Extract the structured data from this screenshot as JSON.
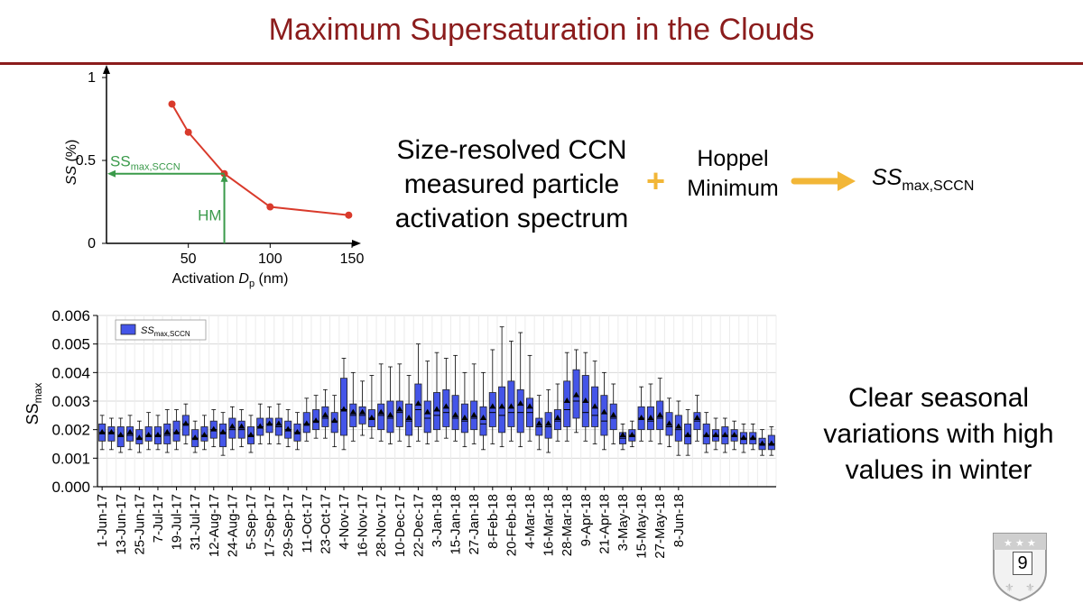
{
  "slide": {
    "title": "Maximum Supersaturation in the Clouds",
    "page_number": "9",
    "colors": {
      "title": "#8b1c1c",
      "box": "#4455e8",
      "line": "#d93a2b",
      "hm": "#3a9a4a",
      "arrow": "#f2b637"
    }
  },
  "method": {
    "size_resolved_lines": [
      "Size-resolved CCN",
      "measured particle",
      "activation spectrum"
    ],
    "plus": "+",
    "hoppel_lines": [
      "Hoppel",
      "Minimum"
    ],
    "result_main": "SS",
    "result_sub": "max,SCCN"
  },
  "conclusion": {
    "lines": [
      "Clear seasonal",
      "variations with high",
      "values in winter"
    ]
  },
  "chart_data": [
    {
      "type": "line",
      "xlabel_main": "Activation ",
      "xlabel_var": "D",
      "xlabel_sub": "p",
      "xlabel_unit": " (nm)",
      "ylabel_var": "SS",
      "ylabel_unit": " (%)",
      "xlim": [
        0,
        150
      ],
      "ylim": [
        0,
        1
      ],
      "xticks": [
        50,
        100,
        150
      ],
      "yticks": [
        0,
        0.5,
        1
      ],
      "ytick_labels": [
        "0",
        "0.5",
        "1"
      ],
      "x": [
        40,
        50,
        72,
        100,
        148
      ],
      "y": [
        0.84,
        0.67,
        0.42,
        0.22,
        0.17
      ],
      "annotation_ss": "SS",
      "annotation_ss_sub": "max,SCCN",
      "annotation_hm": "HM",
      "hm_x": 72,
      "hm_y": 0.42
    },
    {
      "type": "box",
      "ylabel": "SS",
      "ylabel_sub": "max",
      "ylim": [
        0,
        0.006
      ],
      "yticks": [
        "0.000",
        "0.001",
        "0.002",
        "0.003",
        "0.004",
        "0.005",
        "0.006"
      ],
      "legend": {
        "label": "SS",
        "label_sub": "max,SCCN",
        "position": "top-left"
      },
      "grid": true,
      "tick_labels": [
        "1-Jun-17",
        "13-Jun-17",
        "25-Jun-17",
        "7-Jul-17",
        "19-Jul-17",
        "31-Jul-17",
        "12-Aug-17",
        "24-Aug-17",
        "5-Sep-17",
        "17-Sep-17",
        "29-Sep-17",
        "11-Oct-17",
        "23-Oct-17",
        "4-Nov-17",
        "16-Nov-17",
        "28-Nov-17",
        "10-Dec-17",
        "22-Dec-17",
        "3-Jan-18",
        "15-Jan-18",
        "27-Jan-18",
        "8-Feb-18",
        "20-Feb-18",
        "4-Mar-18",
        "16-Mar-18",
        "28-Mar-18",
        "9-Apr-18",
        "21-Apr-18",
        "3-May-18",
        "15-May-18",
        "27-May-18",
        "8-Jun-18"
      ],
      "boxes": [
        {
          "w1": 0.0013,
          "q1": 0.0016,
          "med": 0.0019,
          "q3": 0.0022,
          "w2": 0.0025,
          "mean": 0.0019
        },
        {
          "w1": 0.0013,
          "q1": 0.0016,
          "med": 0.0019,
          "q3": 0.0021,
          "w2": 0.0024,
          "mean": 0.0019
        },
        {
          "w1": 0.0012,
          "q1": 0.0014,
          "med": 0.0018,
          "q3": 0.0021,
          "w2": 0.0024,
          "mean": 0.0018
        },
        {
          "w1": 0.0013,
          "q1": 0.0016,
          "med": 0.0018,
          "q3": 0.0021,
          "w2": 0.0025,
          "mean": 0.0019
        },
        {
          "w1": 0.0012,
          "q1": 0.0015,
          "med": 0.0017,
          "q3": 0.002,
          "w2": 0.0023,
          "mean": 0.0017
        },
        {
          "w1": 0.0013,
          "q1": 0.0016,
          "med": 0.0018,
          "q3": 0.0021,
          "w2": 0.0026,
          "mean": 0.0018
        },
        {
          "w1": 0.0013,
          "q1": 0.0015,
          "med": 0.0018,
          "q3": 0.0021,
          "w2": 0.0025,
          "mean": 0.0018
        },
        {
          "w1": 0.0012,
          "q1": 0.0015,
          "med": 0.0018,
          "q3": 0.0022,
          "w2": 0.0027,
          "mean": 0.0019
        },
        {
          "w1": 0.0013,
          "q1": 0.0016,
          "med": 0.0019,
          "q3": 0.0023,
          "w2": 0.0027,
          "mean": 0.0019
        },
        {
          "w1": 0.0015,
          "q1": 0.0018,
          "med": 0.0022,
          "q3": 0.0025,
          "w2": 0.0029,
          "mean": 0.0022
        },
        {
          "w1": 0.0012,
          "q1": 0.0014,
          "med": 0.0017,
          "q3": 0.002,
          "w2": 0.0023,
          "mean": 0.0017
        },
        {
          "w1": 0.0013,
          "q1": 0.0016,
          "med": 0.0018,
          "q3": 0.0021,
          "w2": 0.0025,
          "mean": 0.0018
        },
        {
          "w1": 0.0014,
          "q1": 0.0017,
          "med": 0.002,
          "q3": 0.0023,
          "w2": 0.0027,
          "mean": 0.002
        },
        {
          "w1": 0.0011,
          "q1": 0.0014,
          "med": 0.0019,
          "q3": 0.0022,
          "w2": 0.0026,
          "mean": 0.0019
        },
        {
          "w1": 0.0013,
          "q1": 0.0017,
          "med": 0.002,
          "q3": 0.0024,
          "w2": 0.0028,
          "mean": 0.0021
        },
        {
          "w1": 0.0014,
          "q1": 0.0017,
          "med": 0.002,
          "q3": 0.0023,
          "w2": 0.0027,
          "mean": 0.0021
        },
        {
          "w1": 0.0012,
          "q1": 0.0015,
          "med": 0.0018,
          "q3": 0.0021,
          "w2": 0.0025,
          "mean": 0.0018
        },
        {
          "w1": 0.0015,
          "q1": 0.0018,
          "med": 0.0021,
          "q3": 0.0024,
          "w2": 0.0029,
          "mean": 0.0021
        },
        {
          "w1": 0.0015,
          "q1": 0.0019,
          "med": 0.0022,
          "q3": 0.0024,
          "w2": 0.0028,
          "mean": 0.0022
        },
        {
          "w1": 0.0015,
          "q1": 0.0018,
          "med": 0.0021,
          "q3": 0.0024,
          "w2": 0.0029,
          "mean": 0.0022
        },
        {
          "w1": 0.0014,
          "q1": 0.0017,
          "med": 0.002,
          "q3": 0.0023,
          "w2": 0.0027,
          "mean": 0.002
        },
        {
          "w1": 0.0013,
          "q1": 0.0016,
          "med": 0.0019,
          "q3": 0.0022,
          "w2": 0.0026,
          "mean": 0.0019
        },
        {
          "w1": 0.0016,
          "q1": 0.0019,
          "med": 0.0022,
          "q3": 0.0026,
          "w2": 0.0031,
          "mean": 0.0022
        },
        {
          "w1": 0.0017,
          "q1": 0.002,
          "med": 0.0023,
          "q3": 0.0027,
          "w2": 0.0032,
          "mean": 0.0023
        },
        {
          "w1": 0.0017,
          "q1": 0.0021,
          "med": 0.0024,
          "q3": 0.0028,
          "w2": 0.0034,
          "mean": 0.0025
        },
        {
          "w1": 0.0014,
          "q1": 0.0019,
          "med": 0.0023,
          "q3": 0.0026,
          "w2": 0.0032,
          "mean": 0.0023
        },
        {
          "w1": 0.0013,
          "q1": 0.0018,
          "med": 0.0027,
          "q3": 0.0038,
          "w2": 0.0045,
          "mean": 0.0027
        },
        {
          "w1": 0.0016,
          "q1": 0.0021,
          "med": 0.0025,
          "q3": 0.0029,
          "w2": 0.004,
          "mean": 0.0026
        },
        {
          "w1": 0.0018,
          "q1": 0.0022,
          "med": 0.0025,
          "q3": 0.0028,
          "w2": 0.0037,
          "mean": 0.0026
        },
        {
          "w1": 0.0017,
          "q1": 0.0021,
          "med": 0.0024,
          "q3": 0.0027,
          "w2": 0.0039,
          "mean": 0.0024
        },
        {
          "w1": 0.0016,
          "q1": 0.002,
          "med": 0.0025,
          "q3": 0.0029,
          "w2": 0.0043,
          "mean": 0.0026
        },
        {
          "w1": 0.0015,
          "q1": 0.0019,
          "med": 0.0024,
          "q3": 0.003,
          "w2": 0.0042,
          "mean": 0.0025
        },
        {
          "w1": 0.0016,
          "q1": 0.0021,
          "med": 0.0026,
          "q3": 0.003,
          "w2": 0.0043,
          "mean": 0.0027
        },
        {
          "w1": 0.0014,
          "q1": 0.0018,
          "med": 0.0023,
          "q3": 0.0029,
          "w2": 0.0039,
          "mean": 0.0024
        },
        {
          "w1": 0.0016,
          "q1": 0.0021,
          "med": 0.0027,
          "q3": 0.0036,
          "w2": 0.005,
          "mean": 0.0029
        },
        {
          "w1": 0.0015,
          "q1": 0.0019,
          "med": 0.0024,
          "q3": 0.003,
          "w2": 0.0044,
          "mean": 0.0026
        },
        {
          "w1": 0.0016,
          "q1": 0.002,
          "med": 0.0025,
          "q3": 0.0033,
          "w2": 0.0047,
          "mean": 0.0027
        },
        {
          "w1": 0.0017,
          "q1": 0.0021,
          "med": 0.0026,
          "q3": 0.0034,
          "w2": 0.0045,
          "mean": 0.0028
        },
        {
          "w1": 0.0016,
          "q1": 0.002,
          "med": 0.0024,
          "q3": 0.0032,
          "w2": 0.0046,
          "mean": 0.0025
        },
        {
          "w1": 0.0014,
          "q1": 0.0019,
          "med": 0.0023,
          "q3": 0.0029,
          "w2": 0.004,
          "mean": 0.0024
        },
        {
          "w1": 0.0015,
          "q1": 0.002,
          "med": 0.0024,
          "q3": 0.003,
          "w2": 0.0043,
          "mean": 0.0025
        },
        {
          "w1": 0.0013,
          "q1": 0.0018,
          "med": 0.0022,
          "q3": 0.0028,
          "w2": 0.004,
          "mean": 0.0024
        },
        {
          "w1": 0.0015,
          "q1": 0.0021,
          "med": 0.0026,
          "q3": 0.0033,
          "w2": 0.0048,
          "mean": 0.0028
        },
        {
          "w1": 0.0014,
          "q1": 0.0019,
          "med": 0.0025,
          "q3": 0.0035,
          "w2": 0.0056,
          "mean": 0.0028
        },
        {
          "w1": 0.0016,
          "q1": 0.0021,
          "med": 0.0026,
          "q3": 0.0037,
          "w2": 0.0051,
          "mean": 0.0028
        },
        {
          "w1": 0.0014,
          "q1": 0.0019,
          "med": 0.0026,
          "q3": 0.0034,
          "w2": 0.0054,
          "mean": 0.0029
        },
        {
          "w1": 0.0016,
          "q1": 0.0021,
          "med": 0.0026,
          "q3": 0.0031,
          "w2": 0.0046,
          "mean": 0.0028
        },
        {
          "w1": 0.0013,
          "q1": 0.0018,
          "med": 0.0021,
          "q3": 0.0024,
          "w2": 0.0032,
          "mean": 0.0022
        },
        {
          "w1": 0.0012,
          "q1": 0.0017,
          "med": 0.0021,
          "q3": 0.0026,
          "w2": 0.0034,
          "mean": 0.0022
        },
        {
          "w1": 0.0016,
          "q1": 0.002,
          "med": 0.0023,
          "q3": 0.0027,
          "w2": 0.0036,
          "mean": 0.0024
        },
        {
          "w1": 0.0016,
          "q1": 0.0021,
          "med": 0.0027,
          "q3": 0.0037,
          "w2": 0.0047,
          "mean": 0.003
        },
        {
          "w1": 0.0019,
          "q1": 0.0024,
          "med": 0.003,
          "q3": 0.0041,
          "w2": 0.0048,
          "mean": 0.0032
        },
        {
          "w1": 0.0016,
          "q1": 0.0021,
          "med": 0.0026,
          "q3": 0.0039,
          "w2": 0.0047,
          "mean": 0.003
        },
        {
          "w1": 0.0015,
          "q1": 0.0021,
          "med": 0.0025,
          "q3": 0.0035,
          "w2": 0.0044,
          "mean": 0.0028
        },
        {
          "w1": 0.0013,
          "q1": 0.0018,
          "med": 0.0023,
          "q3": 0.0032,
          "w2": 0.004,
          "mean": 0.0026
        },
        {
          "w1": 0.0015,
          "q1": 0.002,
          "med": 0.0024,
          "q3": 0.0029,
          "w2": 0.0036,
          "mean": 0.0025
        },
        {
          "w1": 0.0013,
          "q1": 0.0015,
          "med": 0.0017,
          "q3": 0.0019,
          "w2": 0.0022,
          "mean": 0.0018
        },
        {
          "w1": 0.0014,
          "q1": 0.0016,
          "med": 0.0018,
          "q3": 0.002,
          "w2": 0.0023,
          "mean": 0.0018
        },
        {
          "w1": 0.0016,
          "q1": 0.002,
          "med": 0.0024,
          "q3": 0.0028,
          "w2": 0.0035,
          "mean": 0.0024
        },
        {
          "w1": 0.0016,
          "q1": 0.002,
          "med": 0.0023,
          "q3": 0.0028,
          "w2": 0.0036,
          "mean": 0.0024
        },
        {
          "w1": 0.0015,
          "q1": 0.002,
          "med": 0.0024,
          "q3": 0.003,
          "w2": 0.0038,
          "mean": 0.0025
        },
        {
          "w1": 0.0014,
          "q1": 0.0018,
          "med": 0.0021,
          "q3": 0.0026,
          "w2": 0.0031,
          "mean": 0.0022
        },
        {
          "w1": 0.0011,
          "q1": 0.0016,
          "med": 0.002,
          "q3": 0.0025,
          "w2": 0.003,
          "mean": 0.0021
        },
        {
          "w1": 0.0011,
          "q1": 0.0015,
          "med": 0.0018,
          "q3": 0.0022,
          "w2": 0.0027,
          "mean": 0.0018
        },
        {
          "w1": 0.0016,
          "q1": 0.002,
          "med": 0.0023,
          "q3": 0.0026,
          "w2": 0.0032,
          "mean": 0.0024
        },
        {
          "w1": 0.0012,
          "q1": 0.0015,
          "med": 0.0018,
          "q3": 0.0022,
          "w2": 0.0026,
          "mean": 0.0018
        },
        {
          "w1": 0.0013,
          "q1": 0.0016,
          "med": 0.0018,
          "q3": 0.002,
          "w2": 0.0024,
          "mean": 0.0018
        },
        {
          "w1": 0.0012,
          "q1": 0.0015,
          "med": 0.0018,
          "q3": 0.0021,
          "w2": 0.0024,
          "mean": 0.0018
        },
        {
          "w1": 0.0013,
          "q1": 0.0016,
          "med": 0.0018,
          "q3": 0.002,
          "w2": 0.0023,
          "mean": 0.0018
        },
        {
          "w1": 0.0012,
          "q1": 0.0015,
          "med": 0.0017,
          "q3": 0.0019,
          "w2": 0.0022,
          "mean": 0.0017
        },
        {
          "w1": 0.0013,
          "q1": 0.0015,
          "med": 0.0017,
          "q3": 0.0019,
          "w2": 0.0022,
          "mean": 0.0017
        },
        {
          "w1": 0.0011,
          "q1": 0.0013,
          "med": 0.0015,
          "q3": 0.0017,
          "w2": 0.002,
          "mean": 0.0015
        },
        {
          "w1": 0.0011,
          "q1": 0.0013,
          "med": 0.0015,
          "q3": 0.0018,
          "w2": 0.0021,
          "mean": 0.0015
        }
      ]
    }
  ]
}
